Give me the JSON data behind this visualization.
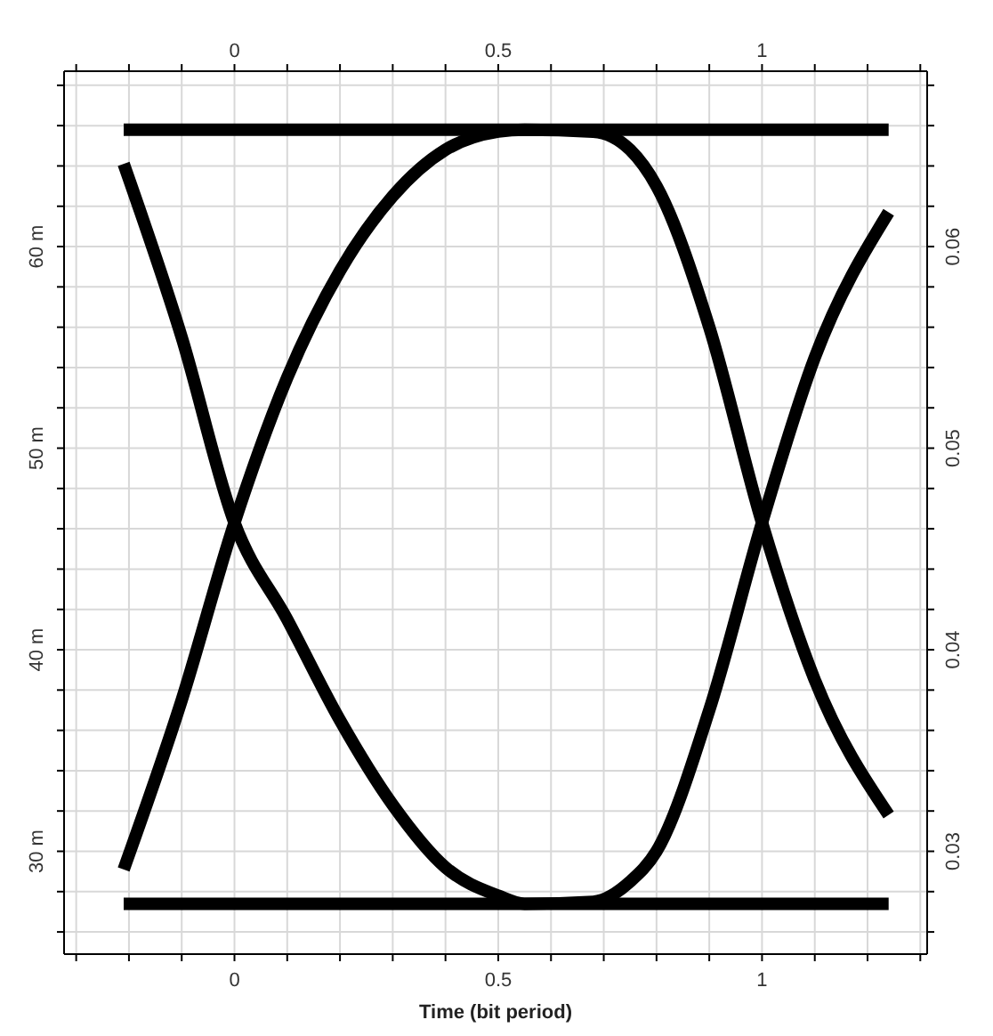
{
  "chart_data": {
    "type": "line",
    "xlabel": "Time (bit period)",
    "grid": true,
    "legend": false,
    "marker": "none",
    "line_style": "solid",
    "xlim": [
      -0.323,
      1.313
    ],
    "xticks": [
      {
        "value": -0.3,
        "label": null
      },
      {
        "value": -0.2,
        "label": null
      },
      {
        "value": -0.1,
        "label": null
      },
      0,
      {
        "value": 0.1,
        "label": null
      },
      {
        "value": 0.2,
        "label": null
      },
      {
        "value": 0.3,
        "label": null
      },
      {
        "value": 0.4,
        "label": null
      },
      0.5,
      {
        "value": 0.6,
        "label": null
      },
      {
        "value": 0.7,
        "label": null
      },
      {
        "value": 0.8,
        "label": null
      },
      {
        "value": 0.9,
        "label": null
      },
      1,
      {
        "value": 1.1,
        "label": null
      },
      {
        "value": 1.2,
        "label": null
      },
      {
        "value": 1.3,
        "label": null
      }
    ],
    "x2lim": [
      -0.323,
      1.313
    ],
    "x2ticks": [
      {
        "value": -0.3,
        "label": null
      },
      {
        "value": -0.2,
        "label": null
      },
      {
        "value": -0.1,
        "label": null
      },
      0,
      {
        "value": 0.1,
        "label": null
      },
      {
        "value": 0.2,
        "label": null
      },
      {
        "value": 0.3,
        "label": null
      },
      {
        "value": 0.4,
        "label": null
      },
      0.5,
      {
        "value": 0.6,
        "label": null
      },
      {
        "value": 0.7,
        "label": null
      },
      {
        "value": 0.8,
        "label": null
      },
      {
        "value": 0.9,
        "label": null
      },
      1,
      {
        "value": 1.1,
        "label": null
      },
      {
        "value": 1.2,
        "label": null
      },
      {
        "value": 1.3,
        "label": null
      }
    ],
    "ylim": [
      24.9,
      68.7
    ],
    "yticks": [
      {
        "value": 26,
        "label": null
      },
      {
        "value": 28,
        "label": null
      },
      {
        "value": 30,
        "label": "30 m"
      },
      {
        "value": 32,
        "label": null
      },
      {
        "value": 34,
        "label": null
      },
      {
        "value": 36,
        "label": null
      },
      {
        "value": 38,
        "label": null
      },
      {
        "value": 40,
        "label": "40 m"
      },
      {
        "value": 42,
        "label": null
      },
      {
        "value": 44,
        "label": null
      },
      {
        "value": 46,
        "label": null
      },
      {
        "value": 48,
        "label": null
      },
      {
        "value": 50,
        "label": "50 m"
      },
      {
        "value": 52,
        "label": null
      },
      {
        "value": 54,
        "label": null
      },
      {
        "value": 56,
        "label": null
      },
      {
        "value": 58,
        "label": null
      },
      {
        "value": 60,
        "label": "60 m"
      },
      {
        "value": 62,
        "label": null
      },
      {
        "value": 64,
        "label": null
      },
      {
        "value": 66,
        "label": null
      },
      {
        "value": 68,
        "label": null
      }
    ],
    "y2lim": [
      0.0249,
      0.0687
    ],
    "y2ticks": [
      {
        "value": 0.026,
        "label": null
      },
      {
        "value": 0.028,
        "label": null
      },
      0.03,
      {
        "value": 0.032,
        "label": null
      },
      {
        "value": 0.034,
        "label": null
      },
      {
        "value": 0.036,
        "label": null
      },
      {
        "value": 0.038,
        "label": null
      },
      0.04,
      {
        "value": 0.042,
        "label": null
      },
      {
        "value": 0.044,
        "label": null
      },
      {
        "value": 0.046,
        "label": null
      },
      {
        "value": 0.048,
        "label": null
      },
      0.05,
      {
        "value": 0.052,
        "label": null
      },
      {
        "value": 0.054,
        "label": null
      },
      {
        "value": 0.056,
        "label": null
      },
      {
        "value": 0.058,
        "label": null
      },
      0.06,
      {
        "value": 0.062,
        "label": null
      },
      {
        "value": 0.064,
        "label": null
      },
      {
        "value": 0.066,
        "label": null
      },
      {
        "value": 0.068,
        "label": null
      }
    ],
    "series": [
      {
        "color": "#000000",
        "x": [
          -0.21,
          1.24
        ],
        "values": [
          65.8,
          65.8
        ]
      },
      {
        "color": "#000000",
        "x": [
          -0.21,
          1.24
        ],
        "values": [
          27.4,
          27.4
        ]
      },
      {
        "color": "#000000",
        "x": [
          -0.21,
          -0.1,
          0,
          0.1,
          0.2,
          0.3,
          0.4,
          0.5,
          0.55,
          0.68,
          0.75,
          0.8,
          0.9,
          1,
          1.1,
          1.24
        ],
        "values": [
          64.1,
          55.5,
          46.3,
          41.5,
          36.5,
          32.3,
          29.2,
          27.8,
          27.4,
          27.5,
          28.5,
          30,
          37,
          46.3,
          54.5,
          61.7
        ]
      },
      {
        "color": "#000000",
        "x": [
          -0.21,
          -0.1,
          0,
          0.1,
          0.2,
          0.3,
          0.4,
          0.5,
          0.55,
          0.68,
          0.75,
          0.8,
          0.9,
          1,
          1.1,
          1.24
        ],
        "values": [
          29.1,
          37.5,
          46.3,
          53.5,
          58.8,
          62.5,
          64.8,
          65.7,
          65.8,
          65.7,
          64.8,
          63,
          56,
          46.3,
          38.5,
          31.8
        ]
      }
    ]
  }
}
